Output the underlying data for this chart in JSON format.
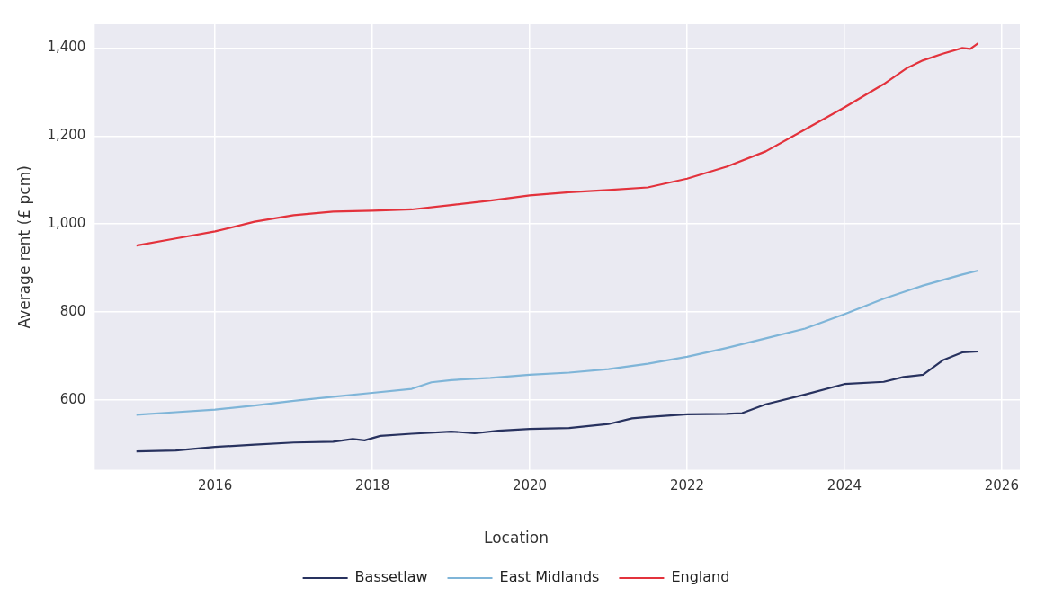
{
  "chart_data": {
    "type": "line",
    "ylabel": "Average rent (£ pcm)",
    "legend_title": "Location",
    "legend": "bottom",
    "grid": true,
    "marker": "none",
    "line_style": "solid",
    "xlim": [
      2014.47,
      2026.23
    ],
    "xticks": [
      2016,
      2018,
      2020,
      2022,
      2024,
      2026
    ],
    "ylim": [
      441,
      1454
    ],
    "yticks": [
      600,
      800,
      {
        "value": 1000,
        "label": "1,000"
      },
      {
        "value": 1200,
        "label": "1,200"
      },
      {
        "value": 1400,
        "label": "1,400"
      }
    ],
    "series": [
      {
        "name": "Bassetlaw",
        "color": "#28325f",
        "x": [
          2015.0,
          2015.5,
          2016.0,
          2016.5,
          2017.0,
          2017.5,
          2017.75,
          2017.9,
          2018.1,
          2018.5,
          2019.0,
          2019.3,
          2019.6,
          2020.0,
          2020.5,
          2021.0,
          2021.3,
          2021.5,
          2022.0,
          2022.5,
          2022.7,
          2023.0,
          2023.5,
          2024.0,
          2024.5,
          2024.75,
          2025.0,
          2025.25,
          2025.5,
          2025.7
        ],
        "values": [
          483,
          485,
          493,
          498,
          503,
          505,
          511,
          508,
          518,
          523,
          528,
          524,
          530,
          534,
          536,
          545,
          558,
          561,
          567,
          568,
          570,
          590,
          612,
          636,
          641,
          652,
          657,
          690,
          708,
          710
        ]
      },
      {
        "name": "East Midlands",
        "color": "#7fb5d8",
        "x": [
          2015.0,
          2015.5,
          2016.0,
          2016.5,
          2017.0,
          2017.5,
          2018.0,
          2018.5,
          2018.75,
          2019.0,
          2019.5,
          2020.0,
          2020.5,
          2021.0,
          2021.5,
          2022.0,
          2022.5,
          2023.0,
          2023.5,
          2024.0,
          2024.5,
          2025.0,
          2025.5,
          2025.7
        ],
        "values": [
          566,
          572,
          578,
          587,
          598,
          607,
          616,
          625,
          640,
          645,
          650,
          657,
          662,
          670,
          682,
          698,
          718,
          740,
          762,
          795,
          830,
          860,
          885,
          894
        ]
      },
      {
        "name": "England",
        "color": "#e3323c",
        "x": [
          2015.0,
          2015.5,
          2016.0,
          2016.5,
          2017.0,
          2017.5,
          2018.0,
          2018.5,
          2019.0,
          2019.5,
          2020.0,
          2020.5,
          2021.0,
          2021.5,
          2022.0,
          2022.5,
          2023.0,
          2023.5,
          2024.0,
          2024.5,
          2024.8,
          2025.0,
          2025.25,
          2025.5,
          2025.6,
          2025.7
        ],
        "values": [
          951,
          967,
          983,
          1005,
          1020,
          1028,
          1030,
          1033,
          1043,
          1053,
          1065,
          1072,
          1077,
          1083,
          1103,
          1130,
          1165,
          1215,
          1265,
          1318,
          1355,
          1372,
          1387,
          1400,
          1398,
          1411
        ]
      }
    ]
  }
}
